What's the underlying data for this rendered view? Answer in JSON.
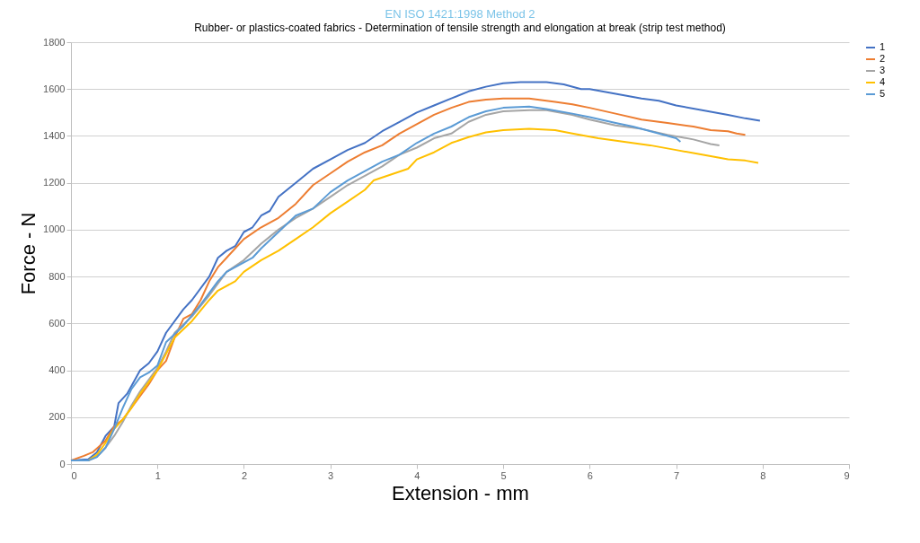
{
  "chart_data": {
    "type": "line",
    "title": "EN ISO 1421:1998 Method 2",
    "subtitle": "Rubber- or plastics-coated fabrics - Determination of tensile strength and elongation at break (strip test method)",
    "xlabel": "Extension - mm",
    "ylabel": "Force - N",
    "xlim": [
      0,
      9
    ],
    "xticks": [
      0,
      1,
      2,
      3,
      4,
      5,
      6,
      7,
      8,
      9
    ],
    "ylim": [
      0,
      1800
    ],
    "yticks": [
      0,
      200,
      400,
      600,
      800,
      1000,
      1200,
      1400,
      1600,
      1800
    ],
    "grid": "y",
    "legend": "right",
    "marker": "none",
    "line_style": "solid",
    "series": [
      {
        "name": "1",
        "color": "#4472c4",
        "x": [
          0,
          0.2,
          0.3,
          0.4,
          0.5,
          0.55,
          0.65,
          0.8,
          0.9,
          1.0,
          1.1,
          1.3,
          1.4,
          1.6,
          1.7,
          1.8,
          1.9,
          2.0,
          2.1,
          2.2,
          2.3,
          2.4,
          2.6,
          2.8,
          3.0,
          3.2,
          3.4,
          3.6,
          3.8,
          4.0,
          4.2,
          4.4,
          4.6,
          4.8,
          5.0,
          5.2,
          5.5,
          5.7,
          5.9,
          6.0,
          6.3,
          6.6,
          6.8,
          7.0,
          7.3,
          7.6,
          7.8,
          7.97
        ],
        "values": [
          15,
          20,
          50,
          120,
          160,
          260,
          300,
          400,
          430,
          480,
          560,
          660,
          700,
          800,
          880,
          910,
          930,
          990,
          1010,
          1060,
          1080,
          1140,
          1200,
          1260,
          1300,
          1340,
          1370,
          1420,
          1460,
          1500,
          1530,
          1560,
          1590,
          1610,
          1625,
          1630,
          1630,
          1620,
          1600,
          1600,
          1580,
          1560,
          1550,
          1530,
          1510,
          1490,
          1475,
          1465
        ]
      },
      {
        "name": "2",
        "color": "#ed7d31",
        "x": [
          0,
          0.15,
          0.25,
          0.4,
          0.5,
          0.6,
          0.8,
          0.9,
          1.0,
          1.1,
          1.2,
          1.3,
          1.4,
          1.5,
          1.6,
          1.7,
          1.8,
          1.9,
          2.0,
          2.2,
          2.4,
          2.6,
          2.8,
          3.0,
          3.2,
          3.4,
          3.6,
          3.8,
          4.0,
          4.2,
          4.4,
          4.6,
          4.8,
          5.0,
          5.3,
          5.6,
          5.8,
          6.0,
          6.3,
          6.6,
          6.9,
          7.2,
          7.4,
          7.6,
          7.7,
          7.8
        ],
        "values": [
          15,
          35,
          50,
          100,
          160,
          190,
          290,
          340,
          400,
          440,
          540,
          620,
          640,
          700,
          780,
          840,
          880,
          920,
          960,
          1010,
          1050,
          1110,
          1190,
          1240,
          1290,
          1330,
          1360,
          1410,
          1450,
          1490,
          1520,
          1545,
          1555,
          1560,
          1560,
          1545,
          1535,
          1520,
          1495,
          1470,
          1455,
          1440,
          1425,
          1420,
          1410,
          1405
        ]
      },
      {
        "name": "3",
        "color": "#a5a5a5",
        "x": [
          0,
          0.2,
          0.3,
          0.4,
          0.5,
          0.6,
          0.7,
          0.8,
          0.9,
          1.0,
          1.1,
          1.2,
          1.4,
          1.6,
          1.8,
          2.0,
          2.2,
          2.4,
          2.6,
          2.8,
          3.0,
          3.2,
          3.4,
          3.6,
          3.8,
          4.0,
          4.2,
          4.4,
          4.6,
          4.8,
          5.0,
          5.3,
          5.5,
          5.8,
          6.0,
          6.3,
          6.6,
          6.9,
          7.2,
          7.4,
          7.5
        ],
        "values": [
          15,
          15,
          30,
          70,
          120,
          180,
          250,
          310,
          360,
          410,
          480,
          560,
          630,
          720,
          820,
          870,
          940,
          1000,
          1050,
          1090,
          1140,
          1190,
          1230,
          1270,
          1320,
          1350,
          1390,
          1410,
          1460,
          1490,
          1505,
          1510,
          1510,
          1490,
          1470,
          1445,
          1430,
          1405,
          1385,
          1365,
          1360
        ]
      },
      {
        "name": "4",
        "color": "#ffc000",
        "x": [
          0,
          0.2,
          0.3,
          0.4,
          0.5,
          0.6,
          0.7,
          0.8,
          0.9,
          1.0,
          1.1,
          1.2,
          1.4,
          1.6,
          1.7,
          1.9,
          2.0,
          2.2,
          2.4,
          2.6,
          2.8,
          3.0,
          3.2,
          3.4,
          3.5,
          3.7,
          3.9,
          4.0,
          4.2,
          4.4,
          4.6,
          4.8,
          5.0,
          5.3,
          5.6,
          5.8,
          6.1,
          6.4,
          6.7,
          7.0,
          7.3,
          7.6,
          7.8,
          7.95
        ],
        "values": [
          15,
          15,
          40,
          90,
          150,
          190,
          240,
          300,
          350,
          400,
          470,
          540,
          610,
          700,
          740,
          780,
          820,
          870,
          910,
          960,
          1010,
          1070,
          1120,
          1170,
          1210,
          1235,
          1260,
          1300,
          1330,
          1370,
          1395,
          1415,
          1425,
          1430,
          1425,
          1410,
          1390,
          1375,
          1360,
          1340,
          1320,
          1300,
          1295,
          1285
        ]
      },
      {
        "name": "5",
        "color": "#5b9bd5",
        "x": [
          0,
          0.2,
          0.3,
          0.4,
          0.5,
          0.6,
          0.7,
          0.8,
          0.9,
          1.0,
          1.1,
          1.3,
          1.5,
          1.6,
          1.7,
          1.8,
          2.0,
          2.1,
          2.2,
          2.4,
          2.6,
          2.8,
          3.0,
          3.2,
          3.4,
          3.6,
          3.8,
          4.0,
          4.2,
          4.4,
          4.6,
          4.8,
          5.0,
          5.3,
          5.5,
          5.8,
          6.0,
          6.3,
          6.5,
          6.8,
          7.0,
          7.05
        ],
        "values": [
          15,
          15,
          30,
          70,
          150,
          240,
          320,
          370,
          390,
          420,
          520,
          590,
          680,
          730,
          780,
          820,
          860,
          880,
          920,
          990,
          1060,
          1090,
          1160,
          1210,
          1250,
          1290,
          1320,
          1370,
          1410,
          1440,
          1480,
          1505,
          1520,
          1525,
          1515,
          1495,
          1480,
          1455,
          1440,
          1410,
          1390,
          1375
        ]
      }
    ]
  }
}
